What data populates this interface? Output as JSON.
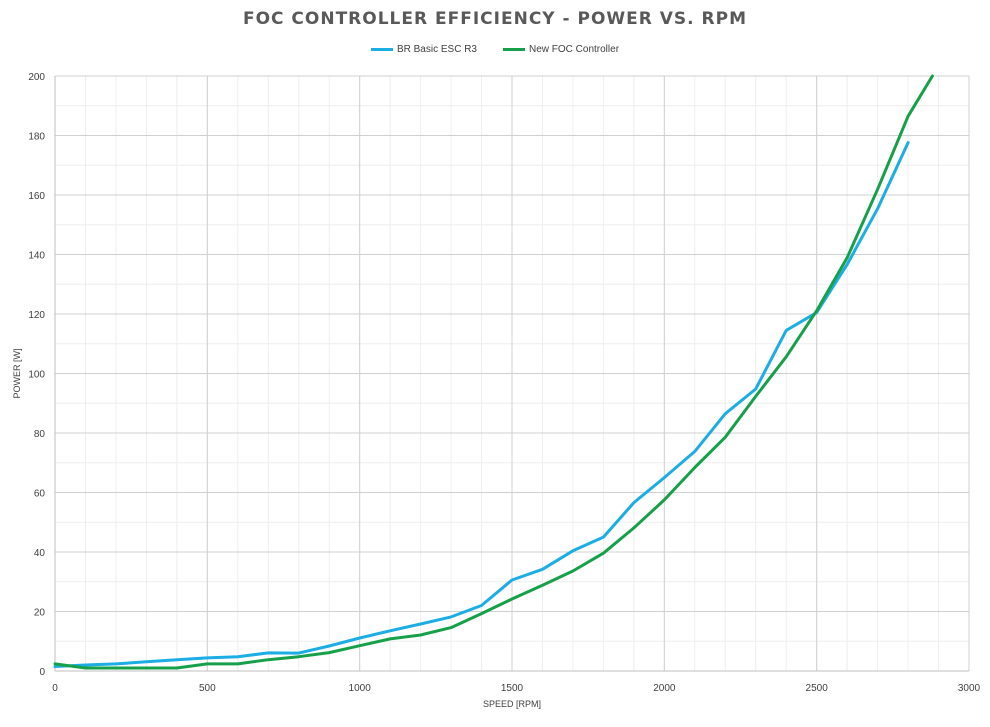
{
  "chart_data": {
    "type": "line",
    "title": "FOC CONTROLLER EFFICIENCY - POWER VS. RPM",
    "xlabel": "SPEED [RPM]",
    "ylabel": "POWER [W]",
    "xlim": [
      0,
      3000
    ],
    "ylim": [
      0,
      200
    ],
    "xticks": [
      0,
      500,
      1000,
      1500,
      2000,
      2500,
      3000
    ],
    "yticks": [
      0,
      20,
      40,
      60,
      80,
      100,
      120,
      140,
      160,
      180,
      200
    ],
    "grid": true,
    "legend_position": "top",
    "series": [
      {
        "name": "BR Basic ESC R3",
        "color": "#1cade4",
        "x": [
          0,
          100,
          200,
          300,
          400,
          500,
          600,
          700,
          800,
          900,
          1000,
          1100,
          1200,
          1300,
          1400,
          1500,
          1600,
          1700,
          1800,
          1900,
          2000,
          2100,
          2200,
          2300,
          2400,
          2500,
          2600,
          2700,
          2800
        ],
        "y": [
          1.5,
          2,
          2.4,
          3.1,
          3.8,
          4.4,
          4.8,
          6.1,
          6,
          8.4,
          11.1,
          13.5,
          15.8,
          18.2,
          22,
          30.6,
          34.2,
          40.4,
          45,
          56.6,
          65,
          73.8,
          86.5,
          94.8,
          114.5,
          120.5,
          136.6,
          155.4,
          177.6
        ]
      },
      {
        "name": "New FOC Controller",
        "color": "#16a04a",
        "x": [
          0,
          100,
          200,
          300,
          400,
          500,
          600,
          700,
          800,
          900,
          1000,
          1100,
          1200,
          1300,
          1400,
          1500,
          1600,
          1700,
          1800,
          1900,
          2000,
          2100,
          2200,
          2300,
          2400,
          2500,
          2600,
          2700,
          2800,
          2880
        ],
        "y": [
          2.4,
          1,
          1,
          1,
          1,
          2.4,
          2.4,
          3.8,
          4.8,
          6.2,
          8.5,
          10.8,
          12.1,
          14.6,
          19.3,
          24.2,
          28.8,
          33.6,
          39.6,
          48.1,
          57.5,
          68.4,
          78.6,
          92.3,
          105.6,
          121.1,
          138.9,
          161.9,
          186.5,
          200
        ]
      }
    ]
  }
}
